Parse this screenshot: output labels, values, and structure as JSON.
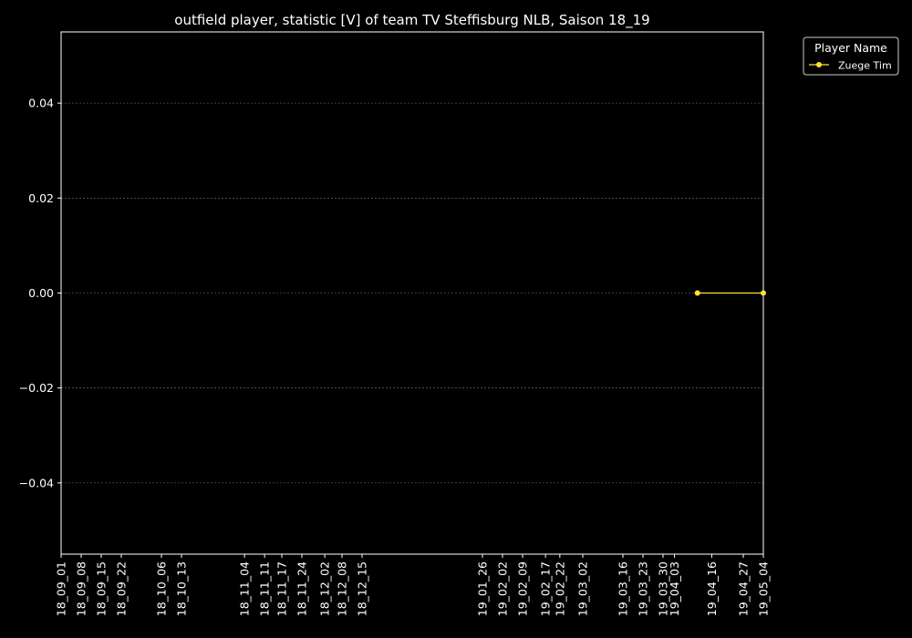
{
  "chart_data": {
    "type": "line",
    "title": "outfield player, statistic [V] of team TV Steffisburg NLB, Saison 18_19",
    "xlabel": "",
    "ylabel": "",
    "x_categories": [
      "18_09_01",
      "18_09_08",
      "18_09_15",
      "18_09_22",
      "18_10_06",
      "18_10_13",
      "18_11_04",
      "18_11_11",
      "18_11_17",
      "18_11_24",
      "18_12_02",
      "18_12_08",
      "18_12_15",
      "19_01_26",
      "19_02_02",
      "19_02_09",
      "19_02_17",
      "19_02_22",
      "19_03_02",
      "19_03_16",
      "19_03_23",
      "19_03_30",
      "19_04_03",
      "19_04_16",
      "19_04_27",
      "19_05_04"
    ],
    "ylim": [
      -0.055,
      0.055
    ],
    "y_ticks": [
      -0.04,
      -0.02,
      0.0,
      0.02,
      0.04
    ],
    "y_tick_labels": [
      "−0.04",
      "−0.02",
      "0.00",
      "0.02",
      "0.04"
    ],
    "grid": "horizontal-dashed",
    "legend": {
      "title": "Player Name",
      "placement": "outside-top-right"
    },
    "series": [
      {
        "name": "Zuege Tim",
        "color": "#ffe234",
        "points": [
          {
            "x": "19_04_11",
            "y": 0.0
          },
          {
            "x": "19_05_04",
            "y": 0.0
          }
        ]
      }
    ]
  }
}
